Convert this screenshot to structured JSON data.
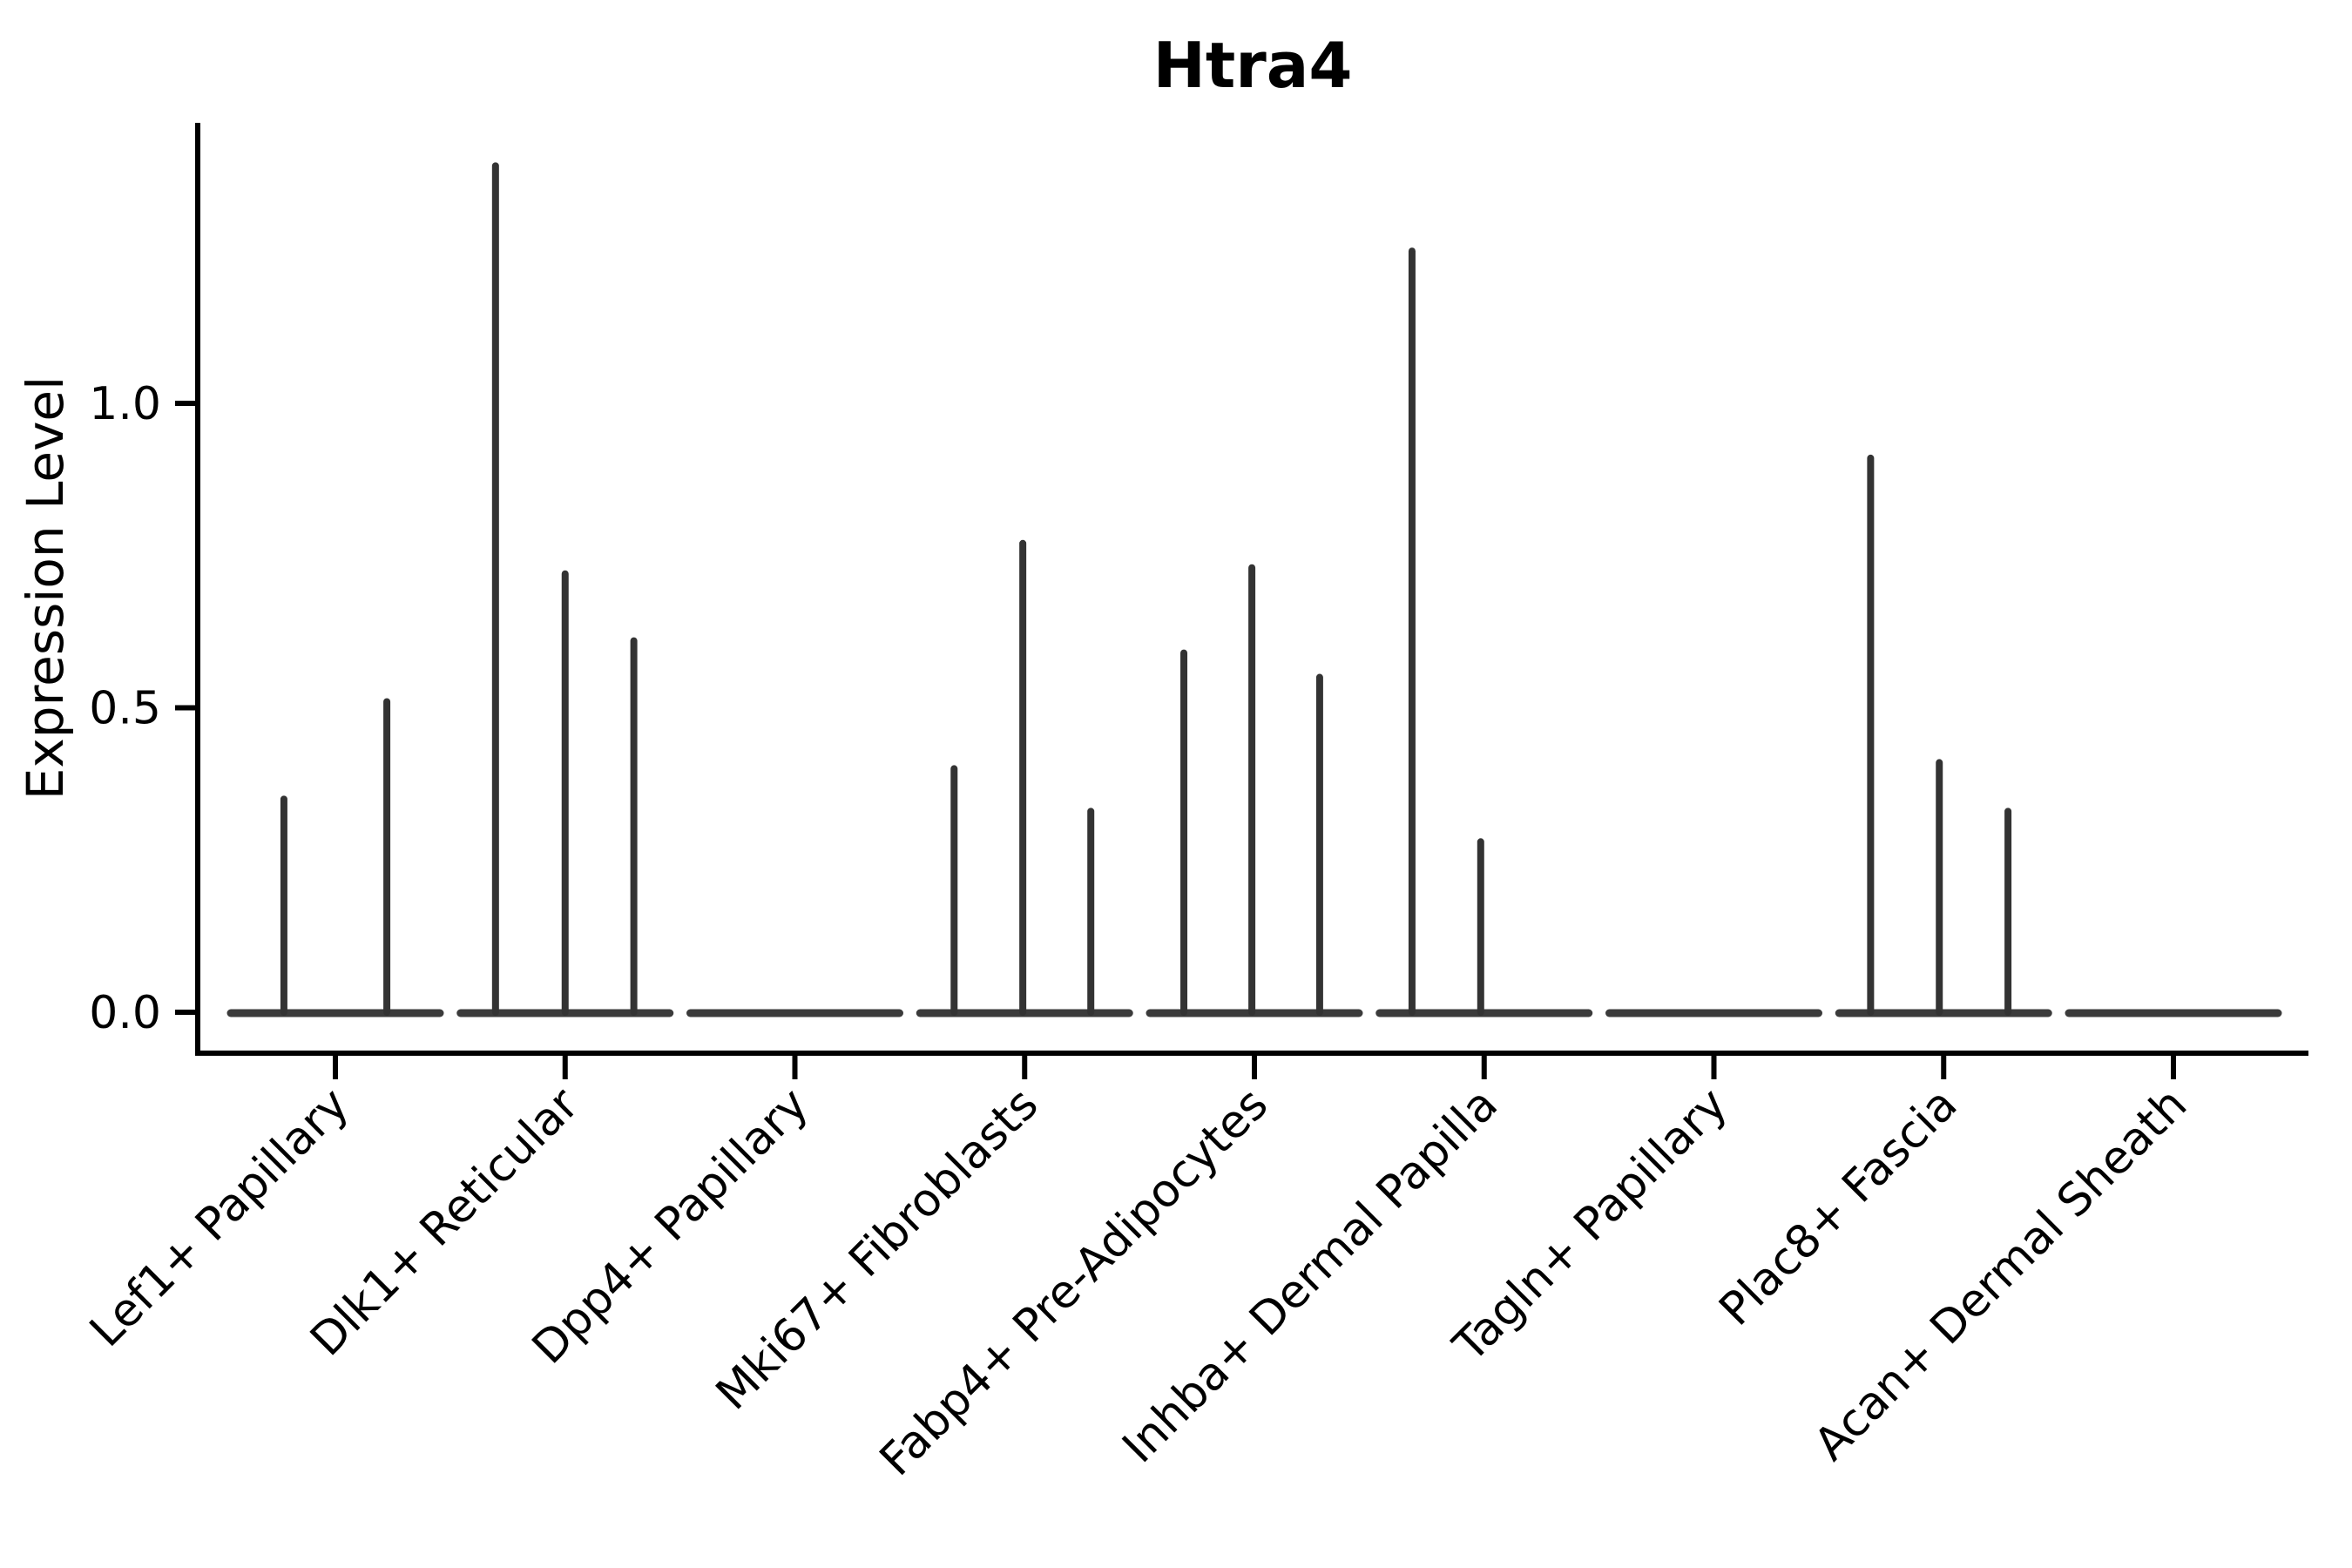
{
  "chart_data": {
    "type": "violin",
    "title": "Htra4",
    "ylabel": "Expression Level",
    "xlabel": "",
    "categories": [
      "Lef1+ Papillary",
      "Dlk1+ Reticular",
      "Dpp4+ Papillary",
      "Mki67+ Fibroblasts",
      "Fabp4+ Pre-Adipocytes",
      "Inhba+ Dermal Papilla",
      "Tagln+ Papillary",
      "Plac8+ Fascia",
      "Acan+ Dermal Sheath"
    ],
    "ytick_values": [
      0.0,
      0.5,
      1.0
    ],
    "ytick_labels": [
      "0.0",
      "0.5",
      "1.0"
    ],
    "ylim": [
      -0.07,
      1.46
    ],
    "grid": false,
    "legend": "none",
    "note": "All violins are collapsed flat at 0 expression; thin vertical spikes mark individual expressing cells.",
    "series": [
      {
        "category": "Lef1+ Papillary",
        "baseline": 0,
        "spikes": [
          {
            "offset": -0.224,
            "value": 0.35
          },
          {
            "offset": 0.224,
            "value": 0.51
          }
        ]
      },
      {
        "category": "Dlk1+ Reticular",
        "baseline": 0,
        "spikes": [
          {
            "offset": -0.303,
            "value": 1.39
          },
          {
            "offset": 0.0,
            "value": 0.72
          },
          {
            "offset": 0.299,
            "value": 0.61
          }
        ]
      },
      {
        "category": "Dpp4+ Papillary",
        "baseline": 0,
        "spikes": []
      },
      {
        "category": "Mki67+ Fibroblasts",
        "baseline": 0,
        "spikes": [
          {
            "offset": -0.307,
            "value": 0.4
          },
          {
            "offset": -0.008,
            "value": 0.77
          },
          {
            "offset": 0.288,
            "value": 0.33
          }
        ]
      },
      {
        "category": "Fabp4+ Pre-Adipocytes",
        "baseline": 0,
        "spikes": [
          {
            "offset": -0.307,
            "value": 0.59
          },
          {
            "offset": -0.011,
            "value": 0.73
          },
          {
            "offset": 0.284,
            "value": 0.55
          }
        ]
      },
      {
        "category": "Inhba+ Dermal Papilla",
        "baseline": 0,
        "spikes": [
          {
            "offset": -0.314,
            "value": 1.25
          },
          {
            "offset": -0.015,
            "value": 0.28
          }
        ]
      },
      {
        "category": "Tagln+ Papillary",
        "baseline": 0,
        "spikes": []
      },
      {
        "category": "Plac8+ Fascia",
        "baseline": 0,
        "spikes": [
          {
            "offset": -0.318,
            "value": 0.91
          },
          {
            "offset": -0.019,
            "value": 0.41
          },
          {
            "offset": 0.28,
            "value": 0.33
          }
        ]
      },
      {
        "category": "Acan+ Dermal Sheath",
        "baseline": 0,
        "spikes": []
      }
    ],
    "colors": {
      "spine": "#000000",
      "violin": "#3b3b3b",
      "spike": "#333333",
      "background": "#ffffff"
    }
  }
}
